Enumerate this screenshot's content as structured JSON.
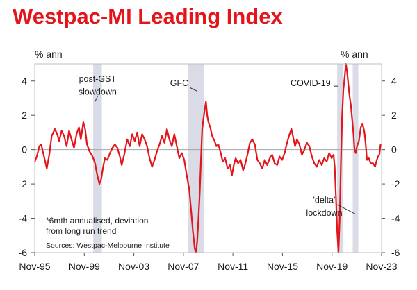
{
  "chart_data": {
    "type": "line",
    "title": "Westpac-MI Leading Index",
    "ylabel_left": "% ann",
    "ylabel_right": "% ann",
    "ylim": [
      -6,
      5
    ],
    "yticks": [
      4,
      2,
      0,
      -2,
      -4,
      -6
    ],
    "xlim": [
      1995.83,
      2023.83
    ],
    "x_tick_labels": [
      {
        "x": 1995.83,
        "label": "Nov-95"
      },
      {
        "x": 1999.83,
        "label": "Nov-99"
      },
      {
        "x": 2003.83,
        "label": "Nov-03"
      },
      {
        "x": 2007.83,
        "label": "Nov-07"
      },
      {
        "x": 2011.83,
        "label": "Nov-11"
      },
      {
        "x": 2015.83,
        "label": "Nov-15"
      },
      {
        "x": 2019.83,
        "label": "Nov-19"
      },
      {
        "x": 2023.83,
        "label": "Nov-23"
      }
    ],
    "color": "#e3151a",
    "shaded_periods": [
      {
        "start": 2000.55,
        "end": 2001.25
      },
      {
        "start": 2008.2,
        "end": 2009.5
      },
      {
        "start": 2020.25,
        "end": 2020.75
      },
      {
        "start": 2021.5,
        "end": 2021.95
      }
    ],
    "series": [
      {
        "name": "Westpac-MI Leading Index (% ann)",
        "points": [
          [
            1995.83,
            -0.7
          ],
          [
            1996.0,
            -0.4
          ],
          [
            1996.2,
            0.2
          ],
          [
            1996.35,
            0.3
          ],
          [
            1996.55,
            -0.3
          ],
          [
            1996.8,
            -1.1
          ],
          [
            1997.0,
            -0.3
          ],
          [
            1997.2,
            0.8
          ],
          [
            1997.45,
            1.2
          ],
          [
            1997.65,
            0.9
          ],
          [
            1997.8,
            0.5
          ],
          [
            1998.0,
            1.1
          ],
          [
            1998.2,
            0.8
          ],
          [
            1998.4,
            0.2
          ],
          [
            1998.6,
            1.1
          ],
          [
            1998.8,
            0.6
          ],
          [
            1999.0,
            0.1
          ],
          [
            1999.2,
            0.9
          ],
          [
            1999.4,
            1.3
          ],
          [
            1999.55,
            0.6
          ],
          [
            1999.75,
            1.6
          ],
          [
            1999.9,
            1.2
          ],
          [
            2000.05,
            0.3
          ],
          [
            2000.25,
            -0.1
          ],
          [
            2000.5,
            -0.4
          ],
          [
            2000.7,
            -0.8
          ],
          [
            2000.85,
            -1.4
          ],
          [
            2001.05,
            -2.0
          ],
          [
            2001.2,
            -1.7
          ],
          [
            2001.35,
            -1.0
          ],
          [
            2001.5,
            -0.5
          ],
          [
            2001.7,
            -0.6
          ],
          [
            2001.9,
            -0.2
          ],
          [
            2002.1,
            0.1
          ],
          [
            2002.3,
            0.3
          ],
          [
            2002.5,
            0.1
          ],
          [
            2002.7,
            -0.4
          ],
          [
            2002.85,
            -0.9
          ],
          [
            2003.05,
            -0.3
          ],
          [
            2003.3,
            0.6
          ],
          [
            2003.5,
            0.2
          ],
          [
            2003.7,
            0.9
          ],
          [
            2003.9,
            0.5
          ],
          [
            2004.1,
            1.0
          ],
          [
            2004.3,
            0.2
          ],
          [
            2004.5,
            0.9
          ],
          [
            2004.7,
            0.6
          ],
          [
            2004.9,
            0.2
          ],
          [
            2005.1,
            -0.5
          ],
          [
            2005.3,
            -1.0
          ],
          [
            2005.5,
            -0.6
          ],
          [
            2005.7,
            -0.1
          ],
          [
            2005.9,
            0.3
          ],
          [
            2006.1,
            0.8
          ],
          [
            2006.3,
            0.4
          ],
          [
            2006.5,
            1.2
          ],
          [
            2006.7,
            0.6
          ],
          [
            2006.9,
            0.2
          ],
          [
            2007.1,
            0.9
          ],
          [
            2007.3,
            0.2
          ],
          [
            2007.5,
            -0.5
          ],
          [
            2007.7,
            -0.2
          ],
          [
            2007.9,
            -0.6
          ],
          [
            2008.1,
            -1.5
          ],
          [
            2008.3,
            -2.3
          ],
          [
            2008.45,
            -3.5
          ],
          [
            2008.6,
            -4.8
          ],
          [
            2008.75,
            -5.8
          ],
          [
            2008.85,
            -6.0
          ],
          [
            2008.95,
            -5.3
          ],
          [
            2009.05,
            -4.0
          ],
          [
            2009.15,
            -2.5
          ],
          [
            2009.25,
            -0.5
          ],
          [
            2009.35,
            1.2
          ],
          [
            2009.45,
            1.8
          ],
          [
            2009.55,
            2.3
          ],
          [
            2009.65,
            2.8
          ],
          [
            2009.75,
            2.0
          ],
          [
            2009.85,
            1.6
          ],
          [
            2010.0,
            1.3
          ],
          [
            2010.15,
            0.8
          ],
          [
            2010.35,
            0.5
          ],
          [
            2010.5,
            0.2
          ],
          [
            2010.65,
            0.3
          ],
          [
            2010.85,
            -0.2
          ],
          [
            2011.0,
            -0.7
          ],
          [
            2011.2,
            -0.5
          ],
          [
            2011.4,
            -1.1
          ],
          [
            2011.6,
            -0.9
          ],
          [
            2011.75,
            -1.5
          ],
          [
            2011.9,
            -0.9
          ],
          [
            2012.05,
            -0.5
          ],
          [
            2012.25,
            -0.8
          ],
          [
            2012.45,
            -0.6
          ],
          [
            2012.65,
            -1.2
          ],
          [
            2012.8,
            -0.9
          ],
          [
            2013.0,
            -0.3
          ],
          [
            2013.2,
            0.4
          ],
          [
            2013.4,
            0.6
          ],
          [
            2013.6,
            0.3
          ],
          [
            2013.8,
            -0.6
          ],
          [
            2014.0,
            -0.8
          ],
          [
            2014.2,
            -1.1
          ],
          [
            2014.4,
            -0.6
          ],
          [
            2014.6,
            -0.9
          ],
          [
            2014.8,
            -0.5
          ],
          [
            2015.0,
            -0.3
          ],
          [
            2015.2,
            -0.8
          ],
          [
            2015.4,
            -0.9
          ],
          [
            2015.6,
            -0.4
          ],
          [
            2015.8,
            -0.6
          ],
          [
            2016.0,
            -0.2
          ],
          [
            2016.2,
            0.4
          ],
          [
            2016.4,
            0.9
          ],
          [
            2016.55,
            1.2
          ],
          [
            2016.7,
            0.7
          ],
          [
            2016.85,
            0.2
          ],
          [
            2017.0,
            0.6
          ],
          [
            2017.2,
            0.3
          ],
          [
            2017.4,
            -0.3
          ],
          [
            2017.6,
            0.0
          ],
          [
            2017.8,
            0.4
          ],
          [
            2018.0,
            0.2
          ],
          [
            2018.2,
            -0.4
          ],
          [
            2018.4,
            -0.8
          ],
          [
            2018.6,
            -1.0
          ],
          [
            2018.8,
            -0.6
          ],
          [
            2019.0,
            -0.9
          ],
          [
            2019.2,
            -0.5
          ],
          [
            2019.4,
            -0.7
          ],
          [
            2019.6,
            -0.2
          ],
          [
            2019.8,
            -0.5
          ],
          [
            2019.95,
            -0.3
          ],
          [
            2020.05,
            -1.0
          ],
          [
            2020.15,
            -2.8
          ],
          [
            2020.25,
            -4.8
          ],
          [
            2020.35,
            -6.0
          ],
          [
            2020.45,
            -4.0
          ],
          [
            2020.55,
            -0.8
          ],
          [
            2020.65,
            2.0
          ],
          [
            2020.75,
            3.5
          ],
          [
            2020.85,
            4.2
          ],
          [
            2020.95,
            5.0
          ],
          [
            2021.05,
            4.5
          ],
          [
            2021.15,
            3.8
          ],
          [
            2021.25,
            3.1
          ],
          [
            2021.35,
            2.6
          ],
          [
            2021.45,
            1.8
          ],
          [
            2021.55,
            1.0
          ],
          [
            2021.65,
            0.0
          ],
          [
            2021.75,
            -0.2
          ],
          [
            2021.85,
            0.2
          ],
          [
            2022.0,
            0.5
          ],
          [
            2022.15,
            1.3
          ],
          [
            2022.3,
            1.5
          ],
          [
            2022.45,
            1.0
          ],
          [
            2022.55,
            0.3
          ],
          [
            2022.65,
            -0.6
          ],
          [
            2022.8,
            -0.5
          ],
          [
            2022.95,
            -0.8
          ],
          [
            2023.15,
            -0.8
          ],
          [
            2023.3,
            -1.0
          ],
          [
            2023.45,
            -0.6
          ],
          [
            2023.55,
            -0.4
          ],
          [
            2023.65,
            -0.3
          ],
          [
            2023.75,
            0.3
          ]
        ]
      }
    ],
    "annotations": [
      {
        "text": "post-GST",
        "x": 2000.9,
        "y": 3.95
      },
      {
        "text": "slowdown",
        "x": 2000.9,
        "y": 3.2
      },
      {
        "text": "GFC",
        "x": 2007.5,
        "y": 3.7
      },
      {
        "text": "COVID-19",
        "x": 2018.1,
        "y": 3.7
      },
      {
        "text": "'delta'",
        "x": 2019.2,
        "y": -3.1
      },
      {
        "text": "lockdown",
        "x": 2019.2,
        "y": -3.85
      }
    ],
    "pointer_lines": [
      {
        "from": [
          2000.9,
          3.1
        ],
        "to": [
          2000.7,
          2.8
        ]
      },
      {
        "from": [
          2008.4,
          3.6
        ],
        "to": [
          2008.95,
          3.4
        ]
      },
      {
        "from": [
          2019.95,
          3.7
        ],
        "to": [
          2020.3,
          3.7
        ]
      },
      {
        "from": [
          2020.25,
          -3.2
        ],
        "to": [
          2021.7,
          -3.75
        ]
      }
    ],
    "note_lines": [
      "*6mth annualised, deviation",
      "from long run trend"
    ],
    "source": "Sources: Westpac-Melbourne Institute"
  }
}
